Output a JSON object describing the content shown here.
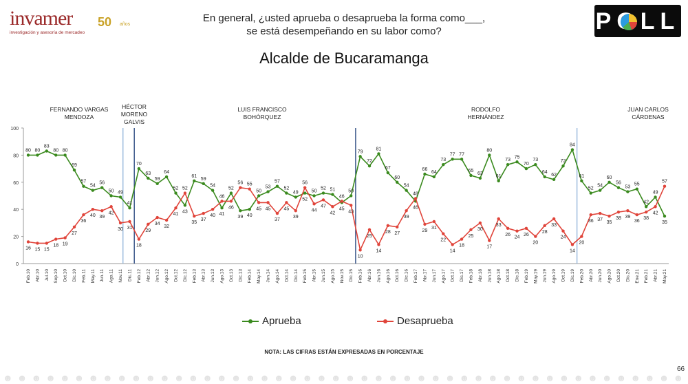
{
  "header": {
    "logo_word": "invamer",
    "logo_years": "50",
    "logo_years_suffix": "años",
    "logo_tagline": "investigación y asesoría de mercadeo",
    "question_line1": "En general, ¿usted aprueba o desaprueba la forma como___,",
    "question_line2": "se está desempeñando en su labor como?",
    "subject": "Alcalde de Bucaramanga",
    "badge_text": "POLL"
  },
  "chart_data": {
    "type": "line",
    "title": "Alcalde de Bucaramanga",
    "xlabel": "",
    "ylabel": "",
    "ylim": [
      0,
      100
    ],
    "yticks": [
      0,
      20,
      40,
      60,
      80,
      100
    ],
    "grid": false,
    "legend_position": "bottom",
    "x": [
      "Feb.10",
      "Abr.10",
      "Jul.10",
      "Sep.10",
      "Oct.10",
      "Dic.10",
      "Feb.11",
      "May.11",
      "Jun.11",
      "Ago.11",
      "Nov.11",
      "Dic.11",
      "Feb.12",
      "Abr.12",
      "Jun.12",
      "Ago.12",
      "Oct.12",
      "Dic.12",
      "Feb.13",
      "Abr.13",
      "Jun.13",
      "Ago.13",
      "Oct.13",
      "Dic.13",
      "Feb.14",
      "May.14",
      "Jun.14",
      "Ago.14",
      "Oct.14",
      "Dic.14",
      "Feb.15",
      "Abr.15",
      "Jun.15",
      "Ago.15",
      "Nov.15",
      "Dic.15",
      "Feb.16",
      "Abr.16",
      "Jun.16",
      "Ago.16",
      "Oct.16",
      "Dic.16",
      "Feb.17",
      "Abr.17",
      "Jun.17",
      "Ago.17",
      "Oct.17",
      "Dic.17",
      "Feb.18",
      "Abr.18",
      "Jun.18",
      "Ago.18",
      "Oct.18",
      "Dic.18",
      "Feb.19",
      "May.19",
      "Jun.19",
      "Ago.19",
      "Oct.19",
      "Dic.19",
      "Feb.20",
      "Abr.20",
      "Jun.20",
      "Ago.20",
      "Oct.20",
      "Dic.20",
      "Ene.21",
      "Feb.21",
      "Abr.21",
      "May.21"
    ],
    "series": [
      {
        "name": "Aprueba",
        "color": "#3a8a1e",
        "values": [
          80,
          80,
          83,
          80,
          80,
          69,
          57,
          54,
          56,
          50,
          49,
          41,
          70,
          63,
          59,
          64,
          52,
          43,
          61,
          59,
          54,
          41,
          52,
          39,
          40,
          50,
          53,
          57,
          52,
          49,
          52,
          50,
          52,
          51,
          45,
          50,
          79,
          72,
          81,
          67,
          60,
          54,
          46,
          66,
          64,
          73,
          77,
          77,
          65,
          63,
          80,
          61,
          73,
          75,
          70,
          73,
          64,
          62,
          72,
          84,
          61,
          52,
          54,
          60,
          56,
          53,
          55,
          42,
          49,
          35
        ]
      },
      {
        "name": "Desaprueba",
        "color": "#e0443a",
        "values": [
          16,
          15,
          15,
          18,
          19,
          27,
          36,
          40,
          39,
          42,
          30,
          31,
          18,
          29,
          34,
          32,
          41,
          52,
          35,
          37,
          40,
          46,
          46,
          56,
          55,
          45,
          45,
          37,
          45,
          39,
          56,
          44,
          47,
          42,
          46,
          43,
          10,
          25,
          14,
          28,
          27,
          39,
          48,
          29,
          31,
          22,
          14,
          18,
          25,
          30,
          17,
          33,
          26,
          24,
          26,
          20,
          28,
          33,
          24,
          14,
          20,
          36,
          37,
          35,
          38,
          39,
          36,
          38,
          42,
          57
        ]
      }
    ],
    "mayors": [
      {
        "name_line1": "FERNANDO VARGAS",
        "name_line2": "MENDOZA",
        "name_line3": ""
      },
      {
        "name_line1": "HÉCTOR",
        "name_line2": "MORENO",
        "name_line3": "GALVIS"
      },
      {
        "name_line1": "LUIS FRANCISCO",
        "name_line2": "BOHÓRQUEZ",
        "name_line3": ""
      },
      {
        "name_line1": "RODOLFO",
        "name_line2": "HERNÁNDEZ",
        "name_line3": ""
      },
      {
        "name_line1": "JUAN CARLOS",
        "name_line2": "CÁRDENAS",
        "name_line3": ""
      }
    ]
  },
  "legend": {
    "aprueba_label": "Aprueba",
    "desaprueba_label": "Desaprueba"
  },
  "note": "NOTA: LAS CIFRAS ESTÁN EXPRESADAS EN PORCENTAJE",
  "page_number": "66",
  "colors": {
    "aprueba": "#3a8a1e",
    "desaprueba": "#e0443a",
    "divider_dark": "#1f3f7a",
    "divider_light": "#8fb3d9",
    "brand": "#9b2a2a"
  }
}
